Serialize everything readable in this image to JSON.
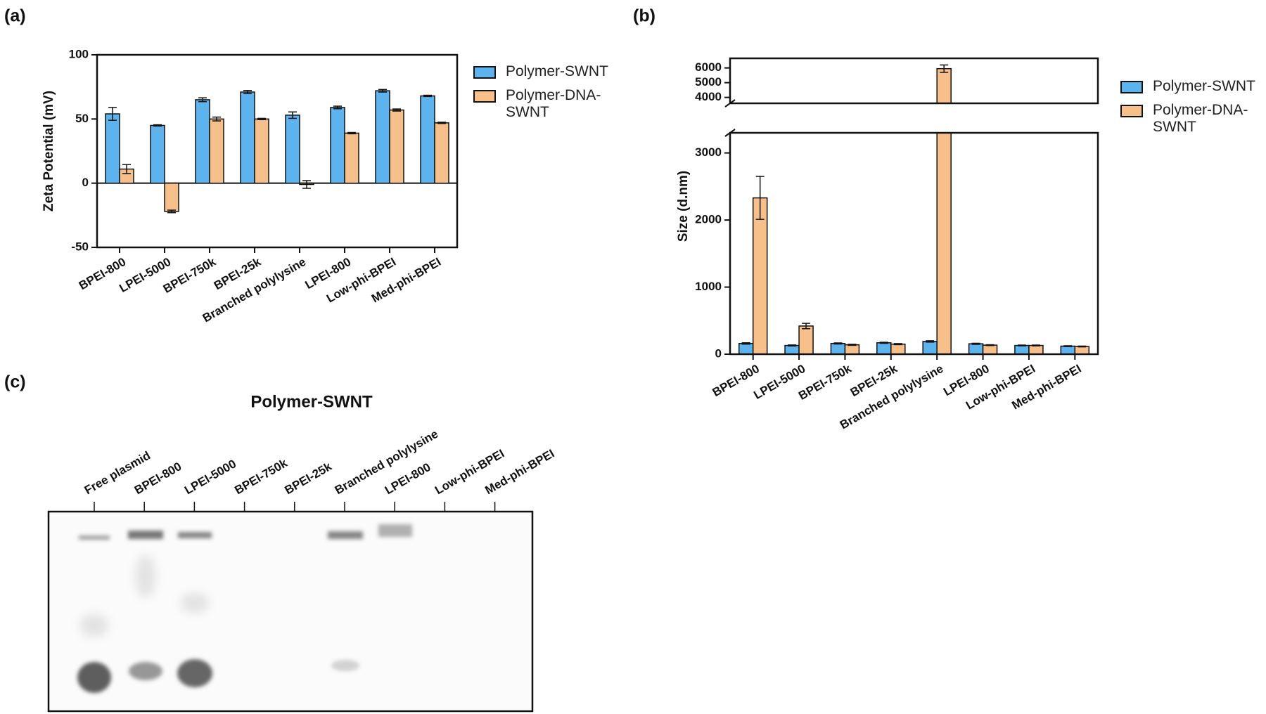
{
  "chart_data": [
    {
      "type": "bar",
      "label": "(a)",
      "ylabel": "Zeta Potential (mV)",
      "categories": [
        "BPEI-800",
        "LPEI-5000",
        "BPEI-750k",
        "BPEI-25k",
        "Branched polylysine",
        "LPEI-800",
        "Low-phi-BPEI",
        "Med-phi-BPEI"
      ],
      "series": [
        {
          "name": "Polymer-SWNT",
          "color": "#5cb3ee",
          "values": [
            54,
            45,
            65,
            71,
            53,
            59,
            72,
            68
          ],
          "errors": [
            5,
            0.5,
            1.5,
            1.2,
            2.5,
            1,
            1,
            0.5
          ]
        },
        {
          "name": "Polymer-DNA-SWNT",
          "color": "#f7c08a",
          "values": [
            11,
            -22,
            50,
            50,
            -1,
            39,
            57,
            47
          ],
          "errors": [
            3.5,
            1,
            1.5,
            0.5,
            3,
            0.5,
            0.8,
            0.5
          ]
        }
      ],
      "ylim": [
        -50,
        100
      ],
      "yticks": [
        -50,
        0,
        50,
        100
      ],
      "legend": "right"
    },
    {
      "type": "bar",
      "label": "(b)",
      "ylabel": "Size (d.nm)",
      "categories": [
        "BPEI-800",
        "LPEI-5000",
        "BPEI-750k",
        "BPEI-25k",
        "Branched polylysine",
        "LPEI-800",
        "Low-phi-BPEI",
        "Med-phi-BPEI"
      ],
      "series": [
        {
          "name": "Polymer-SWNT",
          "color": "#5cb3ee",
          "values": [
            160,
            130,
            160,
            170,
            190,
            155,
            130,
            120
          ],
          "errors": [
            10,
            8,
            8,
            8,
            10,
            8,
            6,
            6
          ]
        },
        {
          "name": "Polymer-DNA-SWNT",
          "color": "#f7c08a",
          "values": [
            2330,
            420,
            140,
            150,
            5950,
            135,
            130,
            115
          ],
          "errors": [
            320,
            40,
            8,
            8,
            250,
            6,
            6,
            6
          ]
        }
      ],
      "ylim_segments": [
        [
          0,
          3300
        ],
        [
          3600,
          6650
        ]
      ],
      "yticks": [
        0,
        1000,
        2000,
        3000,
        4000,
        5000,
        6000
      ],
      "legend": "right"
    }
  ],
  "gel": {
    "label": "(c)",
    "title": "Polymer-SWNT",
    "lanes": [
      "Free plasmid",
      "BPEI-800",
      "LPEI-5000",
      "BPEI-750k",
      "BPEI-25k",
      "Branched polylysine",
      "LPEI-800",
      "Low-phi-BPEI",
      "Med-phi-BPEI"
    ]
  }
}
